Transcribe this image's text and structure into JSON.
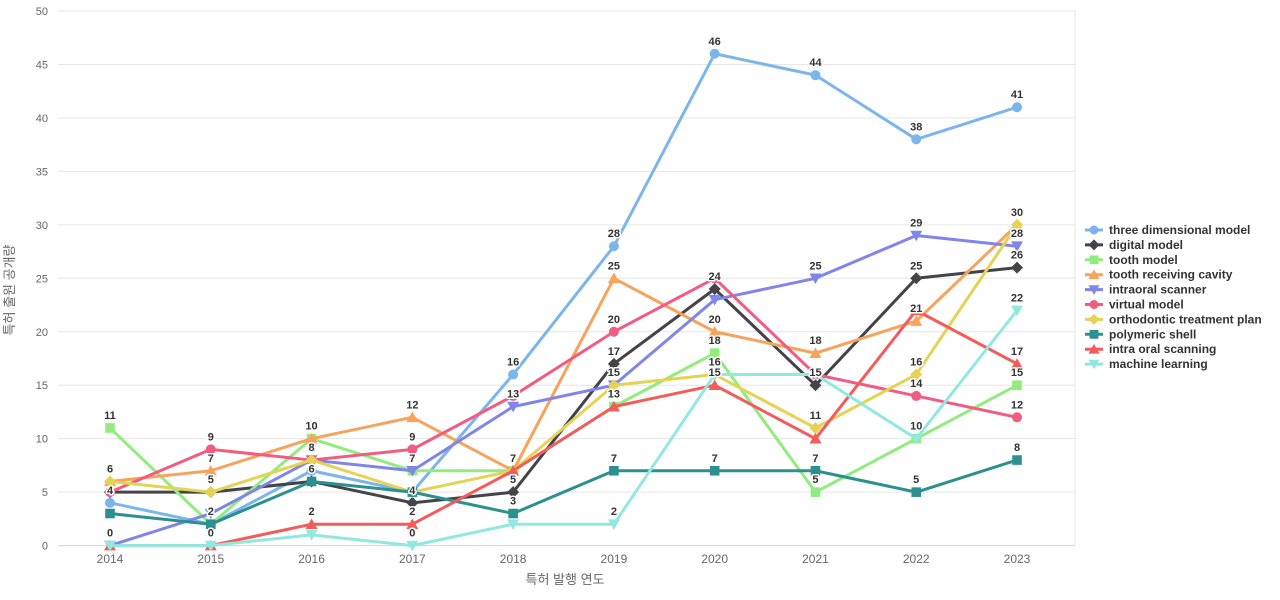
{
  "chart_data": {
    "type": "line",
    "title": "",
    "xlabel": "특허 발행 연도",
    "ylabel": "특허 출원 공개량",
    "x_categories": [
      "2014",
      "2015",
      "2016",
      "2017",
      "2018",
      "2019",
      "2020",
      "2021",
      "2022",
      "2023"
    ],
    "y_ticks": [
      0,
      5,
      10,
      15,
      20,
      25,
      30,
      35,
      40,
      45,
      50
    ],
    "ylim": [
      0,
      50
    ],
    "grid": "horizontal",
    "legend_position": "right",
    "series": [
      {
        "name": "three dimensional model",
        "color": "#7cb5ec",
        "symbol": "circle",
        "values": [
          4,
          2,
          7,
          5,
          16,
          28,
          46,
          44,
          38,
          41
        ]
      },
      {
        "name": "digital model",
        "color": "#434348",
        "symbol": "diamond",
        "values": [
          5,
          5,
          6,
          4,
          5,
          17,
          24,
          15,
          25,
          26
        ]
      },
      {
        "name": "tooth model",
        "color": "#90ed7d",
        "symbol": "square",
        "values": [
          11,
          2,
          10,
          7,
          7,
          13,
          18,
          5,
          10,
          15
        ]
      },
      {
        "name": "tooth receiving cavity",
        "color": "#f7a35c",
        "symbol": "triangle",
        "values": [
          6,
          7,
          10,
          12,
          7,
          25,
          20,
          18,
          21,
          30
        ]
      },
      {
        "name": "intraoral scanner",
        "color": "#8085e9",
        "symbol": "triangle-down",
        "values": [
          0,
          3,
          8,
          7,
          13,
          15,
          23,
          25,
          29,
          28
        ]
      },
      {
        "name": "virtual model",
        "color": "#f15c80",
        "symbol": "circle",
        "values": [
          5,
          9,
          8,
          9,
          14,
          20,
          25,
          16,
          14,
          12
        ]
      },
      {
        "name": "orthodontic treatment plan",
        "color": "#e4d354",
        "symbol": "diamond",
        "values": [
          6,
          5,
          8,
          5,
          7,
          15,
          16,
          11,
          16,
          30
        ]
      },
      {
        "name": "polymeric shell",
        "color": "#2b908f",
        "symbol": "square",
        "values": [
          3,
          2,
          6,
          5,
          3,
          7,
          7,
          7,
          5,
          8
        ]
      },
      {
        "name": "intra oral scanning",
        "color": "#f45b5b",
        "symbol": "triangle",
        "values": [
          0,
          0,
          2,
          2,
          7,
          13,
          15,
          10,
          22,
          17
        ]
      },
      {
        "name": "machine learning",
        "color": "#91e8e1",
        "symbol": "triangle-down",
        "values": [
          0,
          0,
          1,
          0,
          2,
          2,
          16,
          16,
          10,
          22
        ]
      }
    ],
    "visible_point_labels": [
      {
        "year": "2014",
        "values": [
          11,
          6,
          4,
          0
        ]
      },
      {
        "year": "2015",
        "values": [
          9,
          7,
          5,
          2,
          0
        ]
      },
      {
        "year": "2016",
        "values": [
          10,
          8,
          6,
          2
        ]
      },
      {
        "year": "2017",
        "values": [
          12,
          9,
          7,
          4,
          2,
          0
        ]
      },
      {
        "year": "2018",
        "values": [
          16,
          13,
          7,
          5,
          3
        ]
      },
      {
        "year": "2019",
        "values": [
          28,
          25,
          20,
          17,
          15,
          13,
          7,
          2
        ]
      },
      {
        "year": "2020",
        "values": [
          46,
          24,
          20,
          18,
          16,
          15,
          7
        ]
      },
      {
        "year": "2021",
        "values": [
          44,
          25,
          18,
          15,
          11,
          7,
          5
        ]
      },
      {
        "year": "2022",
        "values": [
          38,
          29,
          25,
          21,
          16,
          14,
          10,
          5
        ]
      },
      {
        "year": "2023",
        "values": [
          41,
          30,
          28,
          26,
          22,
          17,
          15,
          12,
          8
        ]
      }
    ]
  }
}
